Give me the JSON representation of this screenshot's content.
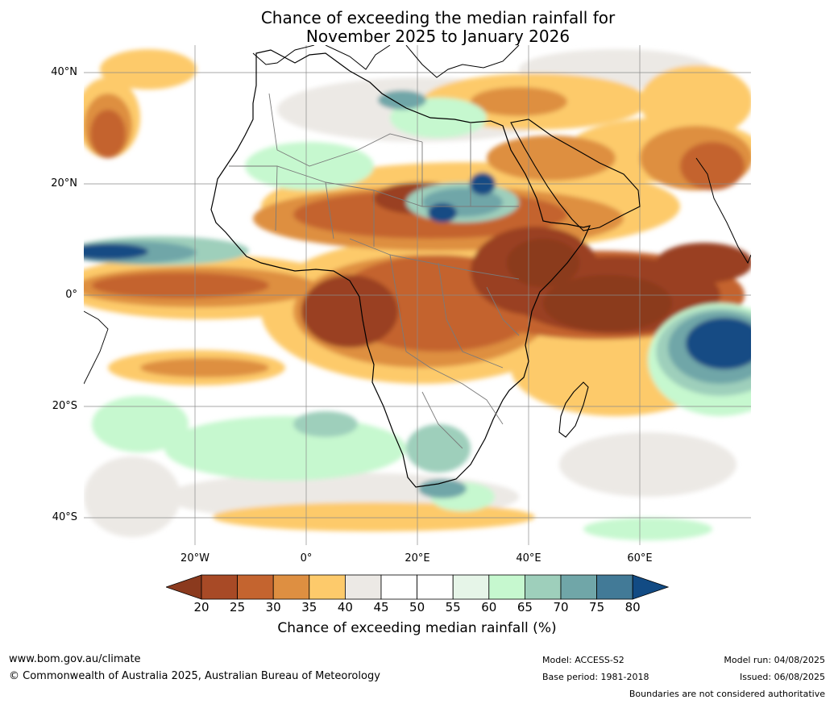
{
  "title": {
    "line1": "Chance of exceeding the median rainfall for",
    "line2": "November 2025 to January 2026"
  },
  "map": {
    "region": "Africa",
    "lat_ticks": [
      "40°N",
      "20°N",
      "0°",
      "20°S",
      "40°S"
    ],
    "lon_ticks": [
      "20°W",
      "0°",
      "20°E",
      "40°E",
      "60°E"
    ],
    "lat_range": [
      -45,
      45
    ],
    "lon_range": [
      -40,
      80
    ],
    "grid": true
  },
  "colorbar": {
    "label": "Chance of exceeding median rainfall (%)",
    "ticks": [
      "20",
      "25",
      "30",
      "35",
      "40",
      "45",
      "50",
      "55",
      "60",
      "65",
      "70",
      "75",
      "80"
    ],
    "colors": [
      "#8b3a1e",
      "#a84a26",
      "#c4642f",
      "#de8f41",
      "#fdca6b",
      "#ece9e5",
      "#ffffff",
      "#ffffff",
      "#e6f5e8",
      "#c6f8cf",
      "#9ecfbb",
      "#70a6a8",
      "#427a97",
      "#124b84"
    ]
  },
  "footer": {
    "website": "www.bom.gov.au/climate",
    "copyright": "© Commonwealth of Australia 2025, Australian Bureau of Meteorology",
    "model": "Model: ACCESS-S2",
    "base_period": "Base period: 1981-2018",
    "model_run": "Model run: 04/08/2025",
    "issued": "Issued: 06/08/2025",
    "disclaimer": "Boundaries are not considered authoritative"
  }
}
